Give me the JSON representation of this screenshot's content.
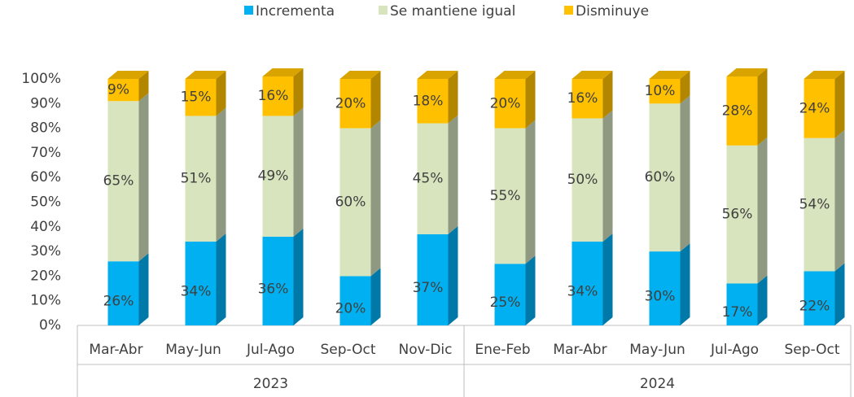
{
  "chart_data": {
    "type": "stacked_bar_3d",
    "groups": [
      {
        "label": "2023",
        "categories": [
          "Mar-Abr",
          "May-Jun",
          "Jul-Ago",
          "Sep-Oct",
          "Nov-Dic"
        ]
      },
      {
        "label": "2024",
        "categories": [
          "Ene-Feb",
          "Mar-Abr",
          "May-Jun",
          "Jul-Ago",
          "Sep-Oct"
        ]
      }
    ],
    "series": [
      {
        "name": "Incrementa",
        "color": "#00b0f0",
        "side_color": "#0079a8",
        "top_color": "#0094cc",
        "values": [
          26,
          34,
          36,
          20,
          37,
          25,
          34,
          30,
          17,
          22
        ],
        "value_labels": [
          "26%",
          "34%",
          "36%",
          "20%",
          "37%",
          "25%",
          "34%",
          "30%",
          "17%",
          "22%"
        ]
      },
      {
        "name": "Se mantiene igual",
        "color": "#d7e4bd",
        "side_color": "#8f9880",
        "top_color": "#b9c6a0",
        "values": [
          65,
          51,
          49,
          60,
          45,
          55,
          50,
          60,
          56,
          54
        ],
        "value_labels": [
          "65%",
          "51%",
          "49%",
          "60%",
          "45%",
          "55%",
          "50%",
          "60%",
          "56%",
          "54%"
        ]
      },
      {
        "name": "Disminuye",
        "color": "#ffc000",
        "side_color": "#b38600",
        "top_color": "#d9a300",
        "values": [
          9,
          15,
          16,
          20,
          18,
          20,
          16,
          10,
          28,
          24
        ],
        "value_labels": [
          "9%",
          "15%",
          "16%",
          "20%",
          "18%",
          "20%",
          "16%",
          "10%",
          "28%",
          "24%"
        ]
      }
    ],
    "ylim": [
      0,
      100
    ],
    "yticks": [
      {
        "value": 0,
        "label": "0%"
      },
      {
        "value": 10,
        "label": "10%"
      },
      {
        "value": 20,
        "label": "20%"
      },
      {
        "value": 30,
        "label": "30%"
      },
      {
        "value": 40,
        "label": "40%"
      },
      {
        "value": 50,
        "label": "50%"
      },
      {
        "value": 60,
        "label": "60%"
      },
      {
        "value": 70,
        "label": "70%"
      },
      {
        "value": 80,
        "label": "80%"
      },
      {
        "value": 90,
        "label": "90%"
      },
      {
        "value": 100,
        "label": "100%"
      }
    ],
    "legend": "top"
  }
}
